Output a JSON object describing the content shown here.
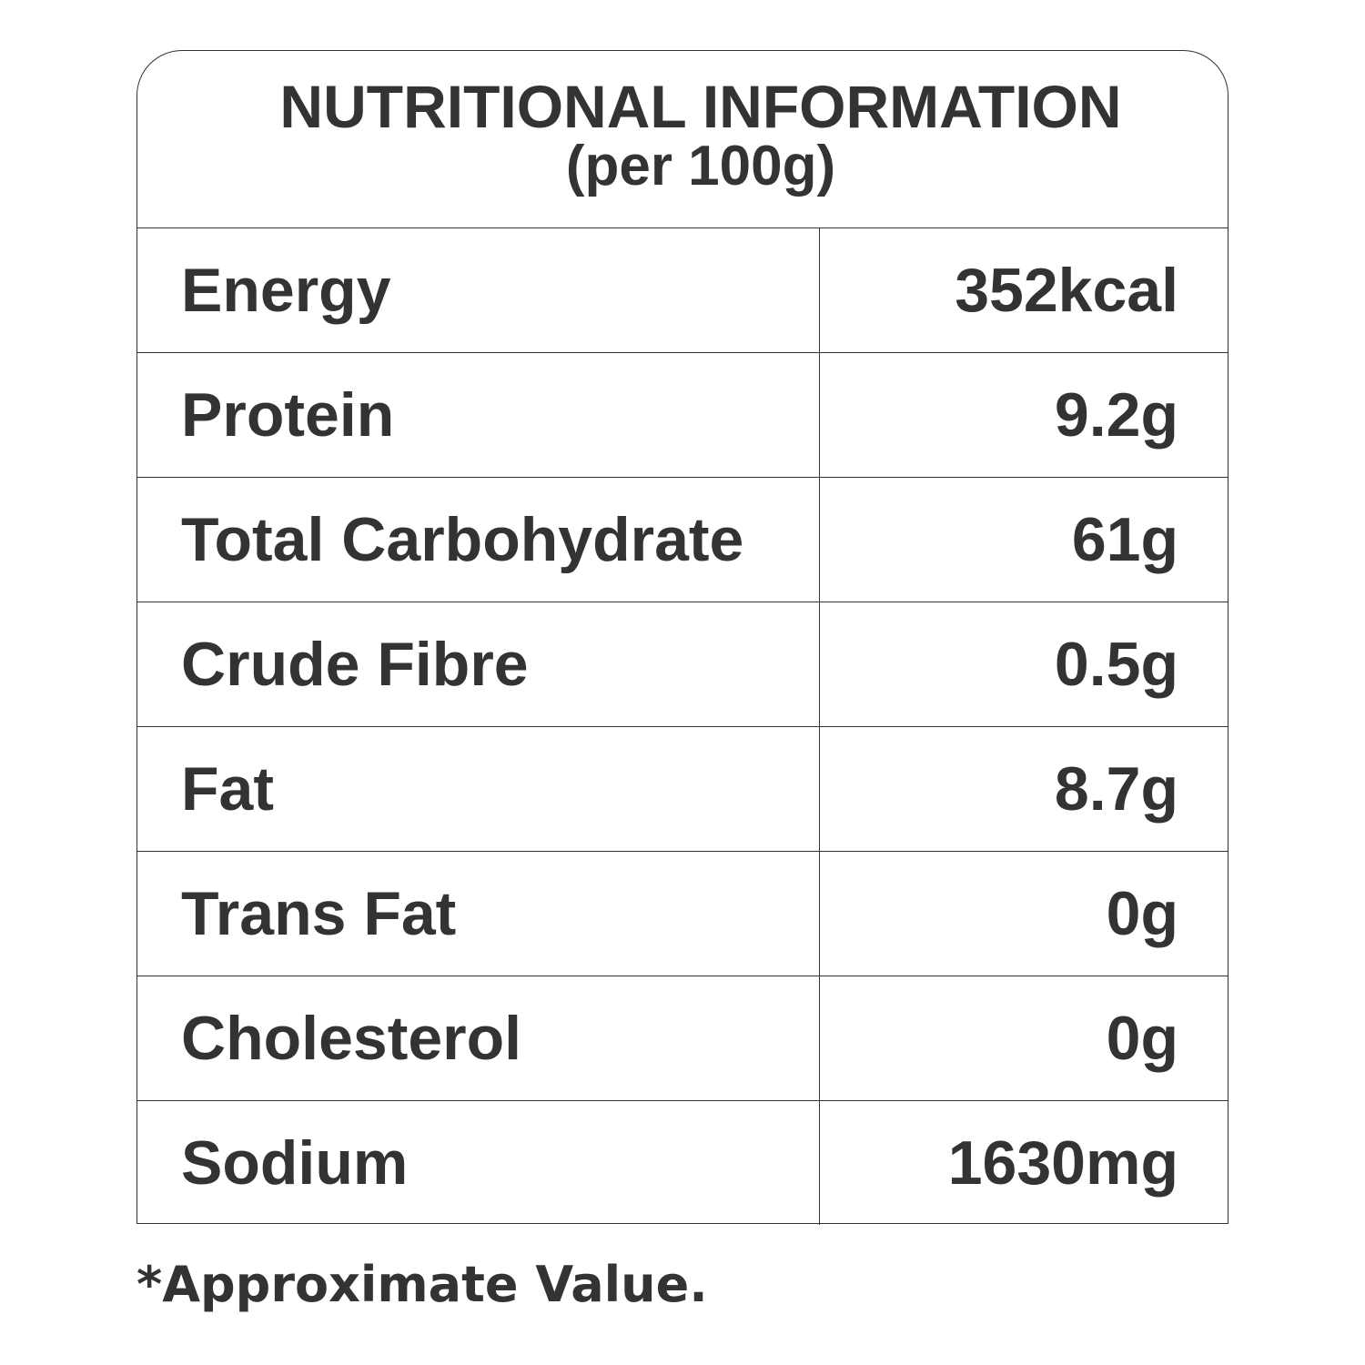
{
  "header": {
    "title": "NUTRITIONAL INFORMATION",
    "subtitle": "(per 100g)"
  },
  "table": {
    "rows": [
      [
        "Energy",
        "352kcal"
      ],
      [
        "Protein",
        "9.2g"
      ],
      [
        "Total Carbohydrate",
        "61g"
      ],
      [
        "Crude Fibre",
        "0.5g"
      ],
      [
        "Fat",
        "8.7g"
      ],
      [
        "Trans Fat",
        "0g"
      ],
      [
        "Cholesterol",
        "0g"
      ],
      [
        "Sodium",
        "1630mg"
      ]
    ]
  },
  "footnote": "*Approximate Value."
}
